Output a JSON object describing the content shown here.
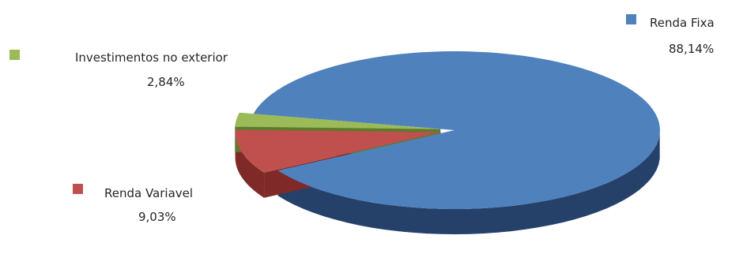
{
  "chart_data": {
    "type": "pie",
    "title": "",
    "style": "3d-exploded",
    "slices": [
      {
        "name": "Renda Fixa",
        "label": "Renda Fixa",
        "value": 88.14,
        "value_label": "88,14%",
        "color": "#4F81BD",
        "side_color": "#25416A"
      },
      {
        "name": "Renda Variavel",
        "label": "Renda Variavel",
        "value": 9.03,
        "value_label": "9,03%",
        "color": "#C0504D",
        "side_color": "#7F2A28"
      },
      {
        "name": "Investimentos no exterior",
        "label": "Investimentos no exterior",
        "value": 2.84,
        "value_label": "2,84%",
        "color": "#9BBB59",
        "side_color": "#5E7A2C"
      }
    ]
  }
}
